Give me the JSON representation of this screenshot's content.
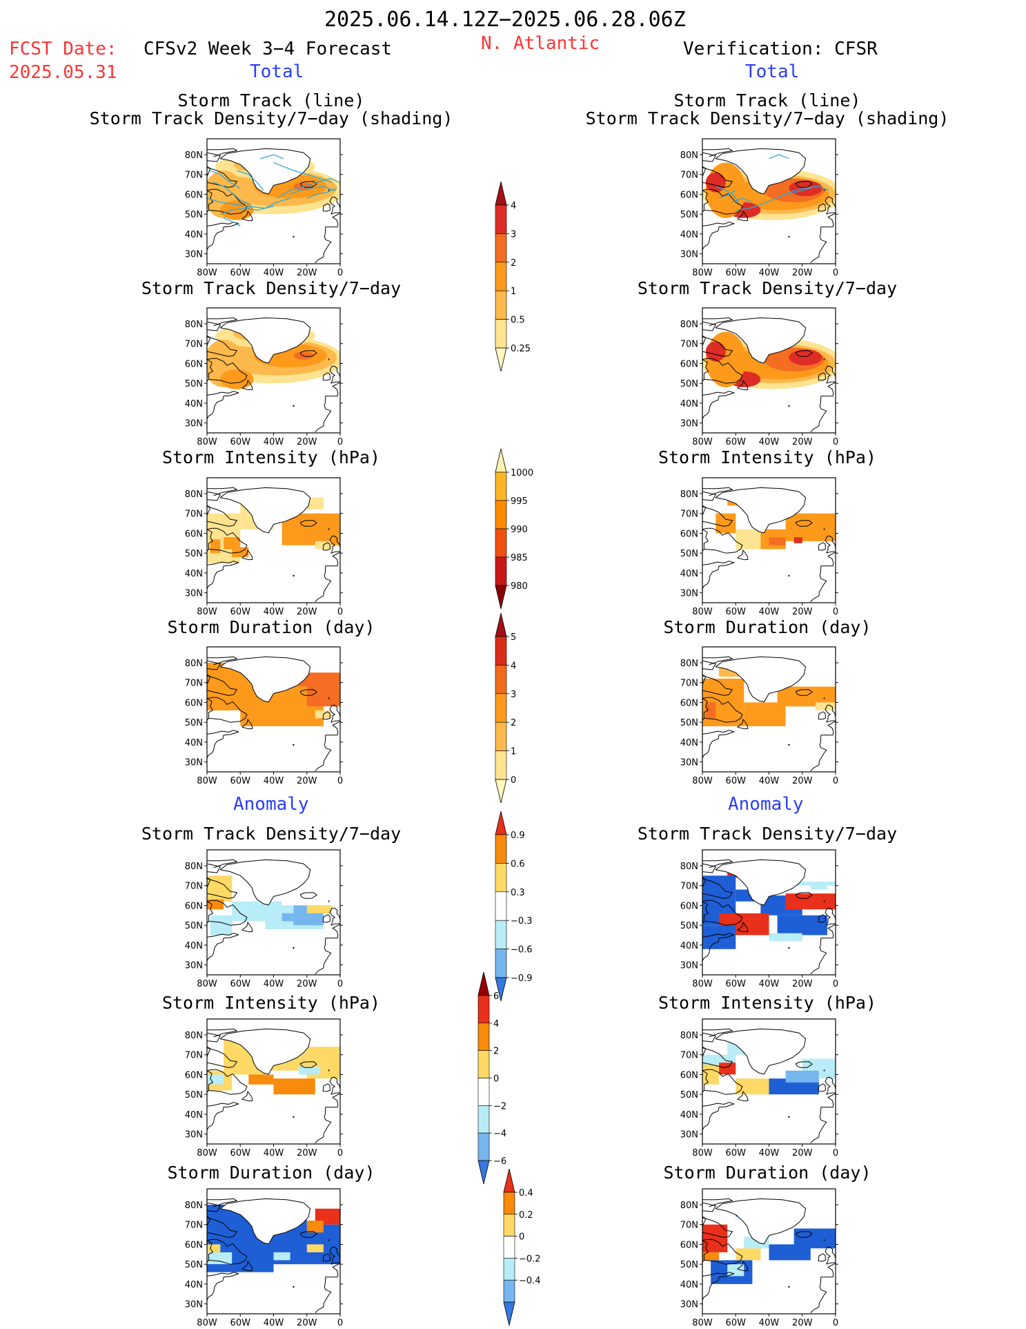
{
  "header": {
    "date_range": "2025.06.14.12Z−2025.06.28.06Z",
    "fcst_label": "FCST Date:",
    "fcst_date": "2025.05.31",
    "forecast_title": "CFSv2 Week 3−4 Forecast",
    "region": "N. Atlantic",
    "verification": "Verification: CFSR"
  },
  "sections": {
    "total": "Total",
    "anomaly": "Anomaly"
  },
  "titles": {
    "track_line": "Storm Track (line)",
    "track_shading": "Storm Track Density/7−day (shading)",
    "density": "Storm Track Density/7−day",
    "intensity": "Storm Intensity (hPa)",
    "duration": "Storm Duration (day)"
  },
  "axes": {
    "lat_labels": [
      "80N",
      "70N",
      "60N",
      "50N",
      "40N",
      "30N"
    ],
    "lon_labels": [
      "80W",
      "60W",
      "40W",
      "20W",
      "0"
    ]
  },
  "colorbars": {
    "density_total": {
      "labels": [
        "4",
        "3",
        "2",
        "1",
        "0.5",
        "0.25"
      ],
      "colors": [
        "#a50f15",
        "#de2d26",
        "#f46d22",
        "#fd9a1b",
        "#fdb94b",
        "#fee391",
        "#fff7bc"
      ]
    },
    "intensity_total": {
      "labels": [
        "1000",
        "995",
        "990",
        "985",
        "980"
      ],
      "colors": [
        "#fff3b0",
        "#fdb427",
        "#fe8a00",
        "#f05010",
        "#c81818",
        "#8b0000"
      ]
    },
    "duration_total": {
      "labels": [
        "5",
        "4",
        "3",
        "2",
        "1",
        "0"
      ],
      "colors": [
        "#a50f15",
        "#d92d1a",
        "#f16a1e",
        "#fd9a1b",
        "#fdb94b",
        "#fee391",
        "#fff7bc"
      ]
    },
    "density_anom": {
      "labels": [
        "0.9",
        "0.6",
        "0.3",
        "−0.3",
        "−0.6",
        "−0.9"
      ],
      "colors": [
        "#e8301a",
        "#f88a0c",
        "#fed966",
        "#ffffff",
        "#b8ecf6",
        "#76b6ee",
        "#3578e0"
      ]
    },
    "intensity_anom": {
      "labels": [
        "6",
        "4",
        "2",
        "0",
        "−2",
        "−4",
        "−6"
      ],
      "colors": [
        "#990000",
        "#e8301a",
        "#f88a0c",
        "#fed966",
        "#ffffff",
        "#b8ecf6",
        "#76b6ee",
        "#3578e0"
      ]
    },
    "duration_anom": {
      "labels": [
        "0.4",
        "0.2",
        "0",
        "−0.2",
        "−0.4"
      ],
      "colors": [
        "#e8301a",
        "#f88a0c",
        "#fed966",
        "#ffffff",
        "#b8ecf6",
        "#76b6ee",
        "#3578e0"
      ]
    }
  },
  "colors": {
    "yellow": "#fee391",
    "light_orange": "#fdb94b",
    "orange": "#fd9a1b",
    "dark_orange": "#f46d22",
    "red": "#de2d26",
    "dark_red": "#a50f15",
    "anom_red": "#e8301a",
    "anom_orange": "#f88a0c",
    "anom_yellow": "#fed966",
    "anom_light_blue": "#b8ecf6",
    "anom_mid_blue": "#76b6ee",
    "anom_blue": "#1f5fd6",
    "track_line": "#2fa8d8"
  }
}
